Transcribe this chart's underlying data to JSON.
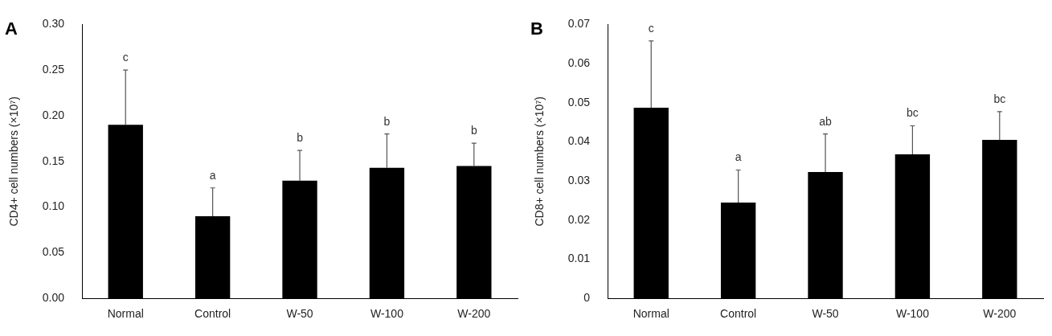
{
  "chart_data": [
    {
      "type": "bar",
      "title": "A",
      "ylabel": "CD4+ cell numbers (×10⁷)",
      "categories": [
        "Normal",
        "Control",
        "W-50",
        "W-100",
        "W-200"
      ],
      "values": [
        0.19,
        0.09,
        0.129,
        0.143,
        0.145
      ],
      "color": "#000000",
      "errors": [
        [
          0.19,
          0.25
        ],
        [
          0.09,
          0.121
        ],
        [
          0.129,
          0.162
        ],
        [
          0.143,
          0.18
        ],
        [
          0.145,
          0.17
        ]
      ],
      "ylim": [
        0,
        0.3
      ],
      "yticks": [
        {
          "value": 0,
          "label": "0.00"
        },
        0.05,
        {
          "value": 0.1,
          "label": "0.10"
        },
        0.15,
        {
          "value": 0.2,
          "label": "0.20"
        },
        0.25,
        {
          "value": 0.3,
          "label": "0.30"
        }
      ],
      "annotations": [
        {
          "text": "c",
          "x": "Normal",
          "y": 0.25
        },
        {
          "text": "a",
          "x": "Control",
          "y": 0.121
        },
        {
          "text": "b",
          "x": "W-50",
          "y": 0.162
        },
        {
          "text": "b",
          "x": "W-100",
          "y": 0.18
        },
        {
          "text": "b",
          "x": "W-200",
          "y": 0.17
        }
      ],
      "grid": false,
      "legend": false
    },
    {
      "type": "bar",
      "title": "B",
      "ylabel": "CD8+ cell numbers (×10⁷)",
      "categories": [
        "Normal",
        "Control",
        "W-50",
        "W-100",
        "W-200"
      ],
      "values": [
        0.0487,
        0.0245,
        0.0323,
        0.0368,
        0.0405
      ],
      "color": "#000000",
      "errors": [
        [
          0.0487,
          0.0658
        ],
        [
          0.0245,
          0.0328
        ],
        [
          0.0323,
          0.042
        ],
        [
          0.0368,
          0.0441
        ],
        [
          0.0405,
          0.0477
        ]
      ],
      "ylim": [
        0,
        0.07
      ],
      "yticks": [
        0,
        0.01,
        0.02,
        0.03,
        0.04,
        0.05,
        0.06,
        0.07
      ],
      "annotations": [
        {
          "text": "c",
          "x": "Normal",
          "y": 0.0658
        },
        {
          "text": "a",
          "x": "Control",
          "y": 0.0328
        },
        {
          "text": "ab",
          "x": "W-50",
          "y": 0.042
        },
        {
          "text": "bc",
          "x": "W-100",
          "y": 0.0441
        },
        {
          "text": "bc",
          "x": "W-200",
          "y": 0.0477
        }
      ],
      "grid": false,
      "legend": false
    }
  ]
}
